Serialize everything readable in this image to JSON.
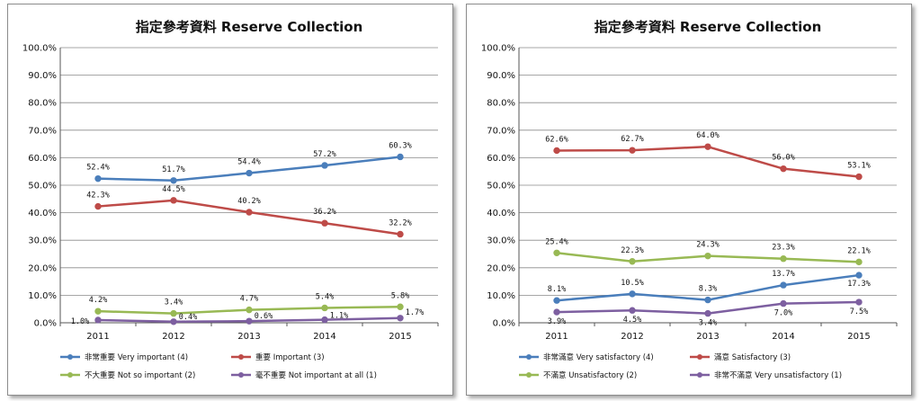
{
  "chart_data": [
    {
      "type": "line",
      "title": "指定參考資料  Reserve Collection",
      "categories": [
        "2011",
        "2012",
        "2013",
        "2014",
        "2015"
      ],
      "ylim": [
        0,
        100
      ],
      "yticks": [
        "0.0%",
        "10.0%",
        "20.0%",
        "30.0%",
        "40.0%",
        "50.0%",
        "60.0%",
        "70.0%",
        "80.0%",
        "90.0%",
        "100.0%"
      ],
      "grid": true,
      "legend_position": "bottom",
      "series": [
        {
          "name": "非常重要 Very important (4)",
          "color": "#4a7ebb",
          "values": [
            52.4,
            51.7,
            54.4,
            57.2,
            60.3
          ],
          "labels": [
            "52.4%",
            "51.7%",
            "54.4%",
            "57.2%",
            "60.3%"
          ]
        },
        {
          "name": "重要 Important (3)",
          "color": "#be4b48",
          "values": [
            42.3,
            44.5,
            40.2,
            36.2,
            32.2
          ],
          "labels": [
            "42.3%",
            "44.5%",
            "40.2%",
            "36.2%",
            "32.2%"
          ]
        },
        {
          "name": "不大重要 Not so important (2)",
          "color": "#98b954",
          "values": [
            4.2,
            3.4,
            4.7,
            5.4,
            5.8
          ],
          "labels": [
            "4.2%",
            "3.4%",
            "4.7%",
            "5.4%",
            "5.8%"
          ]
        },
        {
          "name": "毫不重要 Not important at all (1)",
          "color": "#7d5fa0",
          "values": [
            1.0,
            0.4,
            0.6,
            1.1,
            1.7
          ],
          "labels": [
            "1.0%",
            "0.4%",
            "0.6%",
            "1.1%",
            "1.7%"
          ]
        }
      ]
    },
    {
      "type": "line",
      "title": "指定參考資料  Reserve Collection",
      "categories": [
        "2011",
        "2012",
        "2013",
        "2014",
        "2015"
      ],
      "ylim": [
        0,
        100
      ],
      "yticks": [
        "0.0%",
        "10.0%",
        "20.0%",
        "30.0%",
        "40.0%",
        "50.0%",
        "60.0%",
        "70.0%",
        "80.0%",
        "90.0%",
        "100.0%"
      ],
      "grid": true,
      "legend_position": "bottom",
      "series": [
        {
          "name": "非常滿意 Very satisfactory (4)",
          "color": "#4a7ebb",
          "values": [
            8.1,
            10.5,
            8.3,
            13.7,
            17.3
          ],
          "labels": [
            "8.1%",
            "10.5%",
            "8.3%",
            "13.7%",
            "17.3%"
          ]
        },
        {
          "name": "滿意 Satisfactory (3)",
          "color": "#be4b48",
          "values": [
            62.6,
            62.7,
            64.0,
            56.0,
            53.1
          ],
          "labels": [
            "62.6%",
            "62.7%",
            "64.0%",
            "56.0%",
            "53.1%"
          ]
        },
        {
          "name": "不滿意 Unsatisfactory (2)",
          "color": "#98b954",
          "values": [
            25.4,
            22.3,
            24.3,
            23.3,
            22.1
          ],
          "labels": [
            "25.4%",
            "22.3%",
            "24.3%",
            "23.3%",
            "22.1%"
          ]
        },
        {
          "name": "非常不滿意 Very unsatisfactory (1)",
          "color": "#7d5fa0",
          "values": [
            3.9,
            4.5,
            3.4,
            7.0,
            7.5
          ],
          "labels": [
            "3.9%",
            "4.5%",
            "3.4%",
            "7.0%",
            "7.5%"
          ]
        }
      ]
    }
  ]
}
